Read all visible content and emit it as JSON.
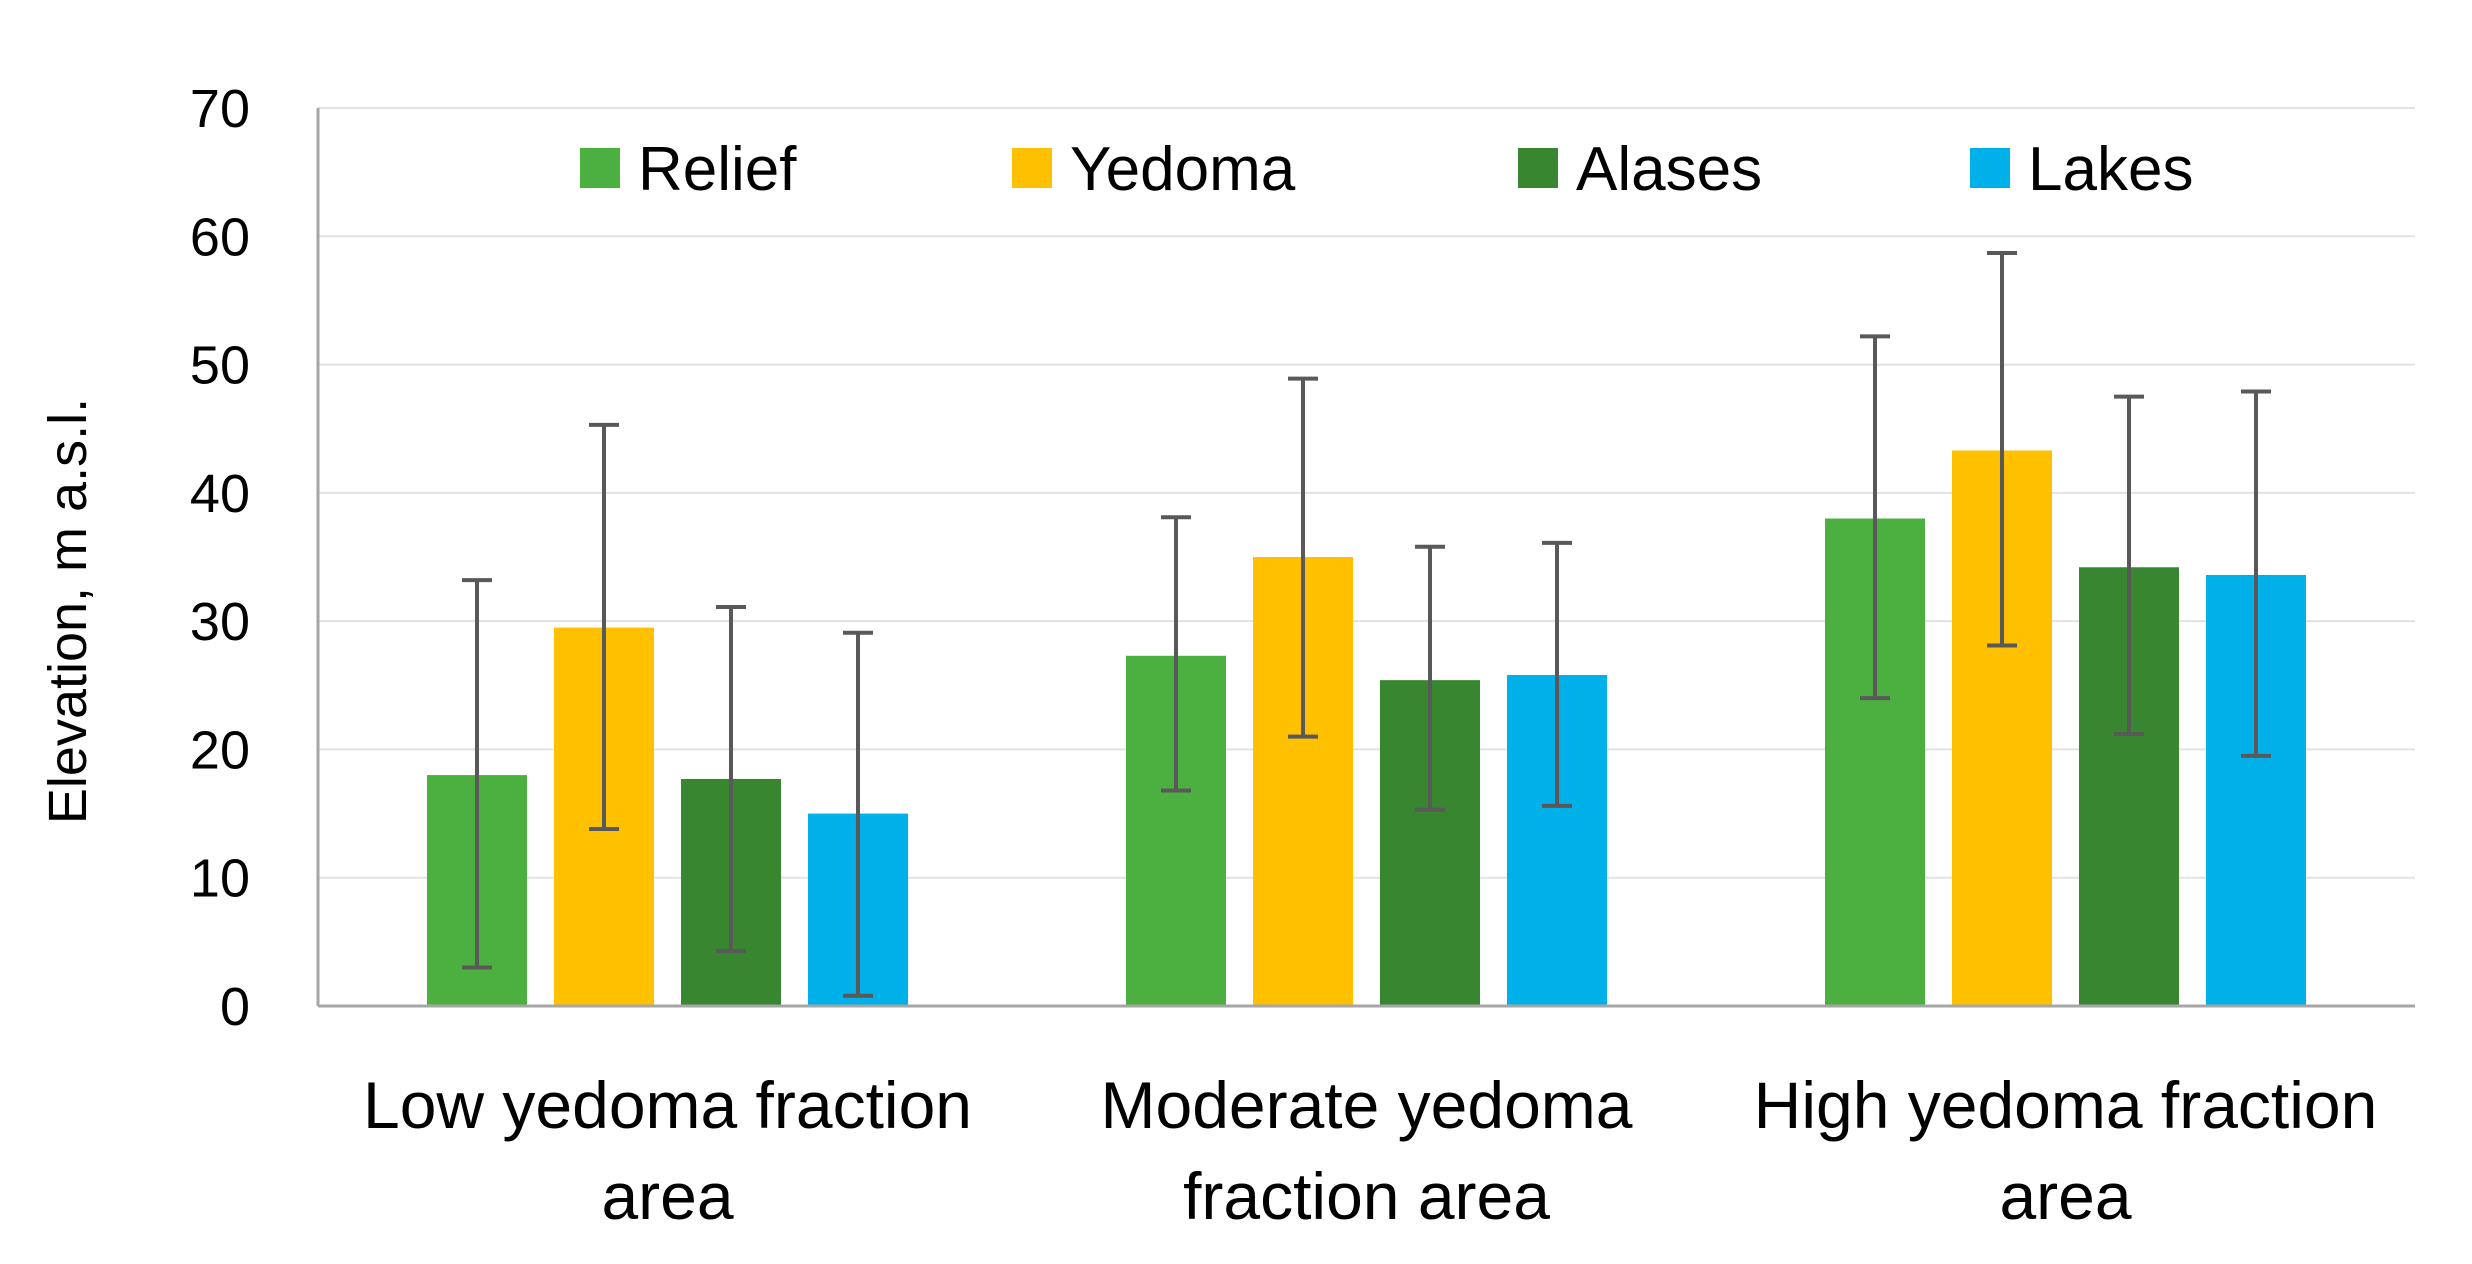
{
  "chart_data": {
    "type": "bar",
    "title": "",
    "xlabel": "",
    "ylabel": "Elevation, m a.s.l.",
    "ylim": [
      0,
      70
    ],
    "yticks": [
      0,
      10,
      20,
      30,
      40,
      50,
      60,
      70
    ],
    "grid": true,
    "legend_position": "top",
    "categories": [
      [
        "Low yedoma fraction",
        "area"
      ],
      [
        "Moderate yedoma",
        "fraction area"
      ],
      [
        "High yedoma fraction",
        "area"
      ]
    ],
    "series": [
      {
        "name": "Relief",
        "color": "#4bb03f",
        "values": [
          18,
          27.3,
          38
        ],
        "error_low": [
          3,
          16.8,
          24
        ],
        "error_high": [
          33.2,
          38.1,
          52.2
        ]
      },
      {
        "name": "Yedoma",
        "color": "#ffc000",
        "values": [
          29.5,
          35,
          43.3
        ],
        "error_low": [
          13.8,
          21,
          28.1
        ],
        "error_high": [
          45.3,
          48.9,
          58.7
        ]
      },
      {
        "name": "Alases",
        "color": "#38862f",
        "values": [
          17.7,
          25.4,
          34.2
        ],
        "error_low": [
          4.3,
          15.3,
          21.2
        ],
        "error_high": [
          31.1,
          35.8,
          47.5
        ]
      },
      {
        "name": "Lakes",
        "color": "#00b0e8",
        "values": [
          15,
          25.8,
          33.6
        ],
        "error_low": [
          0.8,
          15.6,
          19.5
        ],
        "error_high": [
          29.1,
          36.1,
          47.9
        ]
      }
    ]
  }
}
